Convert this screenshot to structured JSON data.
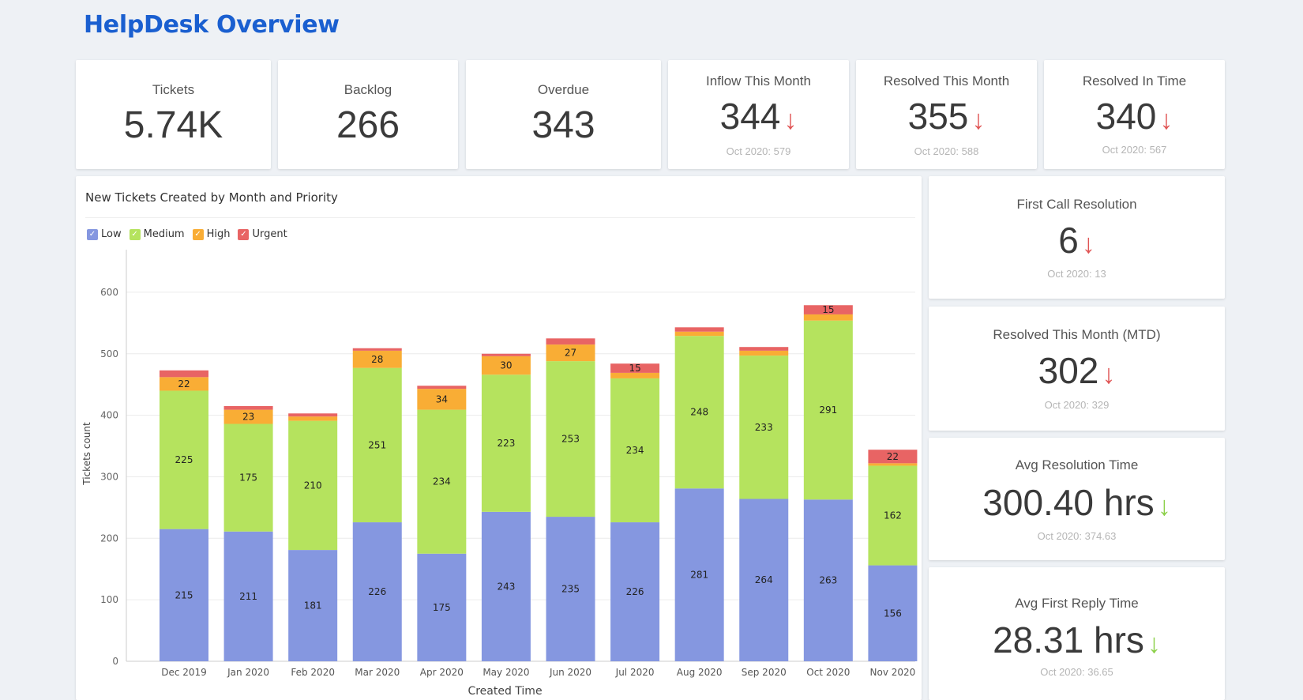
{
  "page": {
    "title": "HelpDesk Overview"
  },
  "kpis_top": [
    {
      "title": "Tickets",
      "value": "5.74K"
    },
    {
      "title": "Backlog",
      "value": "266"
    },
    {
      "title": "Overdue",
      "value": "343"
    },
    {
      "title": "Inflow This Month",
      "value": "344",
      "sub": "Oct 2020: 579",
      "trend": "down",
      "trend_color": "#e05555"
    },
    {
      "title": "Resolved This Month",
      "value": "355",
      "sub": "Oct 2020: 588",
      "trend": "down",
      "trend_color": "#e05555"
    },
    {
      "title": "Resolved In Time",
      "value": "340",
      "sub": "Oct 2020: 567",
      "trend": "down",
      "trend_color": "#e05555"
    }
  ],
  "kpis_side": [
    {
      "title": "First Call Resolution",
      "value": "6",
      "sub": "Oct 2020: 13",
      "trend": "down",
      "trend_color": "#e05555"
    },
    {
      "title": "Resolved This Month (MTD)",
      "value": "302",
      "sub": "Oct 2020: 329",
      "trend": "down",
      "trend_color": "#e05555"
    },
    {
      "title": "Avg Resolution Time",
      "value": "300.40 hrs",
      "sub": "Oct 2020: 374.63",
      "trend": "down",
      "trend_color": "#8cd04a"
    },
    {
      "title": "Avg First Reply Time",
      "value": "28.31 hrs",
      "sub": "Oct 2020: 36.65",
      "trend": "down",
      "trend_color": "#8cd04a"
    }
  ],
  "icons": {
    "trend_down": "↓",
    "legend_check": "✓"
  },
  "chart_data": {
    "type": "bar",
    "stacked": true,
    "title": "New Tickets Created by Month and Priority",
    "xlabel": "Created Time",
    "ylabel": "Tickets count",
    "ylim": [
      0,
      650
    ],
    "yticks": [
      0,
      100,
      200,
      300,
      400,
      500,
      600
    ],
    "grid": true,
    "legend_position": "top-left",
    "categories": [
      "Dec 2019",
      "Jan 2020",
      "Feb 2020",
      "Mar 2020",
      "Apr 2020",
      "May 2020",
      "Jun 2020",
      "Jul 2020",
      "Aug 2020",
      "Sep 2020",
      "Oct 2020",
      "Nov 2020"
    ],
    "series": [
      {
        "name": "Low",
        "color": "#8597e0",
        "values": [
          215,
          211,
          181,
          226,
          175,
          243,
          235,
          226,
          281,
          264,
          263,
          156
        ]
      },
      {
        "name": "Medium",
        "color": "#b5e35e",
        "values": [
          225,
          175,
          210,
          251,
          234,
          223,
          253,
          234,
          248,
          233,
          291,
          162
        ]
      },
      {
        "name": "High",
        "color": "#f9ad35",
        "values": [
          22,
          23,
          7,
          28,
          34,
          30,
          27,
          9,
          7,
          8,
          10,
          4
        ]
      },
      {
        "name": "Urgent",
        "color": "#e86464",
        "values": [
          11,
          6,
          5,
          4,
          5,
          4,
          10,
          15,
          7,
          6,
          15,
          22
        ]
      }
    ],
    "label_threshold": 15
  }
}
